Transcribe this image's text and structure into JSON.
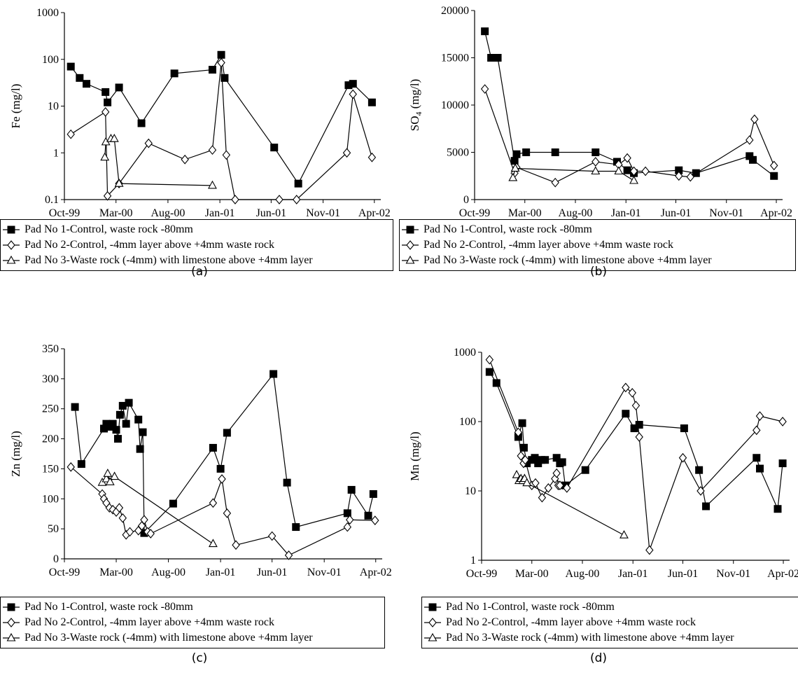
{
  "chart_data": [
    {
      "type": "line",
      "caption": "(a)",
      "ylabel_main": "Fe",
      "ylabel_sub": "",
      "ylabel_unit": " (mg/l)",
      "yscale": "log",
      "ylim": [
        0.1,
        1000
      ],
      "yticks": [
        0.1,
        1,
        10,
        100,
        1000
      ],
      "ytick_labels": [
        "0.1",
        "1",
        "10",
        "100",
        "1000"
      ],
      "xlim": [
        "1999-10-01",
        "2002-04-20"
      ],
      "xticks": [
        "1999-10-01",
        "2000-03-01",
        "2000-08-01",
        "2001-01-01",
        "2001-06-01",
        "2001-11-01",
        "2002-04-01"
      ],
      "xtick_labels": [
        "Oct-99",
        "Mar-00",
        "Aug-00",
        "Jan-01",
        "Jun-01",
        "Nov-01",
        "Apr-02"
      ],
      "legend_position": "bottom",
      "series": [
        {
          "name": "Pad No 1-Control, waste rock -80mm",
          "marker": "square",
          "x": [
            "1999-10-20",
            "1999-11-15",
            "1999-12-05",
            "2000-01-30",
            "2000-02-05",
            "2000-03-10",
            "2000-05-15",
            "2000-08-20",
            "2000-12-10",
            "2001-01-05",
            "2001-01-15",
            "2001-06-10",
            "2001-08-20",
            "2002-01-15",
            "2002-01-28",
            "2002-03-25"
          ],
          "y": [
            70,
            40,
            30,
            20,
            12,
            25,
            4.3,
            50,
            60,
            125,
            40,
            1.3,
            0.22,
            28,
            30,
            12
          ]
        },
        {
          "name": "Pad No 2-Control, -4mm layer above +4mm waste rock",
          "marker": "diamond",
          "x": [
            "1999-10-20",
            "2000-01-30",
            "2000-02-05",
            "2000-03-10",
            "2000-06-05",
            "2000-09-20",
            "2000-12-10",
            "2001-01-05",
            "2001-01-20",
            "2001-02-15",
            "2001-06-25",
            "2001-08-15",
            "2002-01-10",
            "2002-01-28",
            "2002-03-25"
          ],
          "y": [
            2.5,
            7.5,
            0.12,
            0.22,
            1.6,
            0.72,
            1.15,
            85,
            0.9,
            0.1,
            0.1,
            0.1,
            1,
            18,
            0.8
          ]
        },
        {
          "name": "Pad No 3-Waste rock (-4mm) with limestone above +4mm layer",
          "marker": "triangle",
          "x": [
            "2000-01-28",
            "2000-01-31",
            "2000-02-15",
            "2000-02-25",
            "2000-03-10",
            "2000-12-10"
          ],
          "y": [
            0.8,
            1.7,
            2.0,
            2.0,
            0.22,
            0.2
          ]
        }
      ]
    },
    {
      "type": "line",
      "caption": "(b)",
      "ylabel_main": "SO",
      "ylabel_sub": "4",
      "ylabel_unit": " (mg/l)",
      "yscale": "linear",
      "ylim": [
        0,
        20000
      ],
      "yticks": [
        0,
        5000,
        10000,
        15000,
        20000
      ],
      "ytick_labels": [
        "0",
        "5000",
        "10000",
        "15000",
        "20000"
      ],
      "xlim": [
        "1999-10-01",
        "2002-04-20"
      ],
      "xticks": [
        "1999-10-01",
        "2000-03-01",
        "2000-08-01",
        "2001-01-01",
        "2001-06-01",
        "2001-11-01",
        "2002-04-01"
      ],
      "xtick_labels": [
        "Oct-99",
        "Mar-00",
        "Aug-00",
        "Jan-01",
        "Jun-01",
        "Nov-01",
        "Apr-02"
      ],
      "legend_position": "bottom",
      "series": [
        {
          "name": "Pad No 1-Control, waste rock -80mm",
          "marker": "square",
          "x": [
            "1999-11-01",
            "1999-11-20",
            "1999-12-10",
            "2000-01-30",
            "2000-02-05",
            "2000-03-05",
            "2000-06-01",
            "2000-10-01",
            "2000-12-05",
            "2001-01-05",
            "2001-01-25",
            "2001-06-10",
            "2001-08-01",
            "2002-01-10",
            "2002-01-20",
            "2002-03-25"
          ],
          "y": [
            17800,
            15000,
            15000,
            4100,
            4800,
            5000,
            5000,
            5000,
            4000,
            3100,
            2800,
            3100,
            2800,
            4600,
            4200,
            2500
          ]
        },
        {
          "name": "Pad No 2-Control, -4mm layer above +4mm waste rock",
          "marker": "diamond",
          "x": [
            "1999-11-01",
            "2000-01-30",
            "2000-02-05",
            "2000-06-01",
            "2000-10-01",
            "2000-12-10",
            "2001-01-05",
            "2001-01-25",
            "2001-03-01",
            "2001-06-10",
            "2001-07-15",
            "2002-01-10",
            "2002-01-25",
            "2002-03-25"
          ],
          "y": [
            11700,
            2800,
            3400,
            1800,
            4000,
            3700,
            4400,
            3000,
            3000,
            2500,
            2400,
            6300,
            8500,
            3600
          ]
        },
        {
          "name": "Pad No 3-Waste rock (-4mm) with limestone above +4mm layer",
          "marker": "triangle",
          "x": [
            "2000-01-25",
            "2000-02-01",
            "2000-10-01",
            "2000-12-10",
            "2001-01-25"
          ],
          "y": [
            2300,
            3300,
            3000,
            3000,
            2000
          ]
        }
      ]
    },
    {
      "type": "line",
      "caption": "(c)",
      "ylabel_main": "Zn",
      "ylabel_sub": "",
      "ylabel_unit": " (mg/l)",
      "yscale": "linear",
      "ylim": [
        0,
        350
      ],
      "yticks": [
        0,
        50,
        100,
        150,
        200,
        250,
        300,
        350
      ],
      "ytick_labels": [
        "0",
        "50",
        "100",
        "150",
        "200",
        "250",
        "300",
        "350"
      ],
      "xlim": [
        "1999-10-01",
        "2002-04-20"
      ],
      "xticks": [
        "1999-10-01",
        "2000-03-01",
        "2000-08-01",
        "2001-01-01",
        "2001-06-01",
        "2001-11-01",
        "2002-04-01"
      ],
      "xtick_labels": [
        "Oct-99",
        "Mar-00",
        "Aug-00",
        "Jan-01",
        "Jun-01",
        "Nov-01",
        "Apr-02"
      ],
      "legend_position": "bottom",
      "series": [
        {
          "name": "Pad No 1-Control, waste rock -80mm",
          "marker": "square",
          "x": [
            "1999-11-01",
            "1999-11-20",
            "2000-01-25",
            "2000-02-01",
            "2000-02-10",
            "2000-02-20",
            "2000-03-01",
            "2000-03-06",
            "2000-03-12",
            "2000-03-20",
            "2000-03-30",
            "2000-04-07",
            "2000-05-05",
            "2000-05-10",
            "2000-05-18",
            "2000-05-22",
            "2000-08-15",
            "2000-12-10",
            "2001-01-01",
            "2001-01-20",
            "2001-06-05",
            "2001-07-15",
            "2001-08-10",
            "2002-01-08",
            "2002-01-20",
            "2002-03-10",
            "2002-03-25"
          ],
          "y": [
            253,
            158,
            217,
            225,
            220,
            225,
            215,
            200,
            240,
            255,
            225,
            260,
            232,
            183,
            211,
            43,
            92,
            185,
            150,
            210,
            308,
            127,
            53,
            76,
            115,
            72,
            108
          ]
        },
        {
          "name": "Pad No 2-Control, -4mm layer above +4mm waste rock",
          "marker": "diamond",
          "x": [
            "1999-10-20",
            "2000-01-20",
            "2000-01-25",
            "2000-02-01",
            "2000-02-10",
            "2000-02-20",
            "2000-03-01",
            "2000-03-10",
            "2000-03-20",
            "2000-03-30",
            "2000-04-10",
            "2000-05-05",
            "2000-05-15",
            "2000-05-22",
            "2000-06-01",
            "2000-06-10",
            "2000-12-10",
            "2001-01-05",
            "2001-01-20",
            "2001-02-15",
            "2001-06-01",
            "2001-07-20",
            "2002-01-08",
            "2002-01-15",
            "2002-03-30"
          ],
          "y": [
            153,
            108,
            100,
            93,
            85,
            82,
            78,
            85,
            68,
            40,
            45,
            47,
            55,
            65,
            45,
            42,
            93,
            133,
            76,
            23,
            38,
            6,
            53,
            65,
            64
          ]
        },
        {
          "name": "Pad No 3-Waste rock (-4mm) with limestone above +4mm layer",
          "marker": "triangle",
          "x": [
            "2000-01-20",
            "2000-02-01",
            "2000-02-05",
            "2000-02-12",
            "2000-02-25",
            "2000-12-10"
          ],
          "y": [
            127,
            133,
            142,
            128,
            137,
            25
          ]
        }
      ]
    },
    {
      "type": "line",
      "caption": "(d)",
      "ylabel_main": "Mn",
      "ylabel_sub": "",
      "ylabel_unit": " (mg/l)",
      "yscale": "log",
      "ylim": [
        1,
        1000
      ],
      "yticks": [
        1,
        10,
        100,
        1000
      ],
      "ytick_labels": [
        "1",
        "10",
        "100",
        "1000"
      ],
      "xlim": [
        "1999-10-01",
        "2002-04-20"
      ],
      "xticks": [
        "1999-10-01",
        "2000-03-01",
        "2000-08-01",
        "2001-01-01",
        "2001-06-01",
        "2001-11-01",
        "2002-04-01"
      ],
      "xtick_labels": [
        "Oct-99",
        "Mar-00",
        "Aug-00",
        "Jan-01",
        "Jun-01",
        "Nov-01",
        "Apr-02"
      ],
      "legend_position": "bottom",
      "series": [
        {
          "name": "Pad No 1-Control, waste rock -80mm",
          "marker": "square",
          "x": [
            "1999-10-25",
            "1999-11-15",
            "2000-01-20",
            "2000-02-01",
            "2000-02-06",
            "2000-02-15",
            "2000-03-01",
            "2000-03-10",
            "2000-03-20",
            "2000-03-30",
            "2000-04-10",
            "2000-05-15",
            "2000-05-25",
            "2000-06-01",
            "2000-06-10",
            "2000-08-10",
            "2000-12-10",
            "2001-01-05",
            "2001-01-20",
            "2001-06-05",
            "2001-07-20",
            "2001-08-10",
            "2002-01-10",
            "2002-01-20",
            "2002-03-15",
            "2002-03-30"
          ],
          "y": [
            520,
            360,
            60,
            95,
            42,
            25,
            28,
            30,
            25,
            28,
            28,
            30,
            25,
            26,
            12,
            20,
            130,
            80,
            90,
            80,
            20,
            6,
            30,
            21,
            5.5,
            25
          ]
        },
        {
          "name": "Pad No 2-Control, -4mm layer above +4mm waste rock",
          "marker": "diamond",
          "x": [
            "1999-10-25",
            "2000-01-20",
            "2000-01-28",
            "2000-02-05",
            "2000-02-10",
            "2000-03-01",
            "2000-03-12",
            "2000-04-01",
            "2000-04-20",
            "2000-05-10",
            "2000-05-15",
            "2000-05-20",
            "2000-05-25",
            "2000-06-15",
            "2000-12-10",
            "2000-12-30",
            "2001-01-10",
            "2001-01-20",
            "2001-02-20",
            "2001-06-01",
            "2001-07-25",
            "2002-01-10",
            "2002-01-20",
            "2002-03-30"
          ],
          "y": [
            780,
            70,
            32,
            25,
            28,
            12,
            13,
            8,
            11,
            15,
            18,
            12,
            12,
            11,
            310,
            260,
            170,
            60,
            1.4,
            30,
            10,
            75,
            120,
            100
          ]
        },
        {
          "name": "Pad No 3-Waste rock (-4mm) with limestone above +4mm layer",
          "marker": "triangle",
          "x": [
            "2000-01-15",
            "2000-01-22",
            "2000-01-28",
            "2000-02-03",
            "2000-02-08",
            "2000-02-15",
            "2000-12-05"
          ],
          "y": [
            17,
            14,
            15,
            14,
            15,
            13,
            2.3
          ]
        }
      ]
    }
  ]
}
